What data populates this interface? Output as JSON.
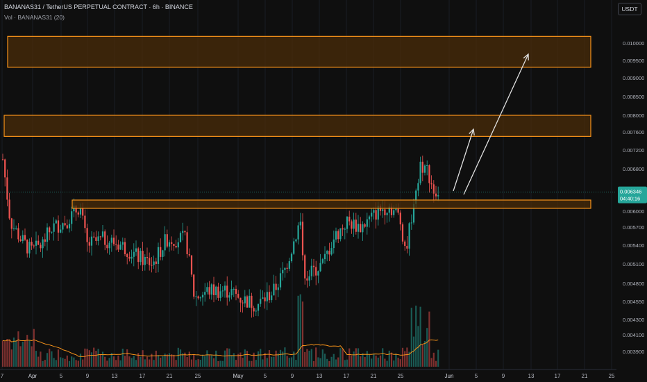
{
  "header": {
    "symbol_line": "BANANAS31 / TetherUS PERPETUAL CONTRACT · 6h · BINANCE",
    "volume_line": "Vol · BANANAS31 (20)"
  },
  "currency_button": "USDT",
  "price_label": {
    "price": "0.006346",
    "countdown": "04:40:16"
  },
  "colors": {
    "up": "#26a69a",
    "down": "#ef5350",
    "zone_fill": "#4a2c0a",
    "zone_stroke": "#f7931a",
    "arrow": "#e0e0e0",
    "price_tag": "#26a69a",
    "ma": "#f7931a"
  },
  "chart_data": {
    "type": "candlestick",
    "timeframe": "6h",
    "y_axis": {
      "ticks": [
        "0.010000",
        "0.009500",
        "0.009000",
        "0.008500",
        "0.008000",
        "0.007600",
        "0.007200",
        "0.006800",
        "0.006000",
        "0.005700",
        "0.005400",
        "0.005100",
        "0.004800",
        "0.004550",
        "0.004300",
        "0.004100",
        "0.003900"
      ],
      "scale": "log"
    },
    "x_axis": {
      "ticks": [
        "7",
        "Apr",
        "5",
        "9",
        "13",
        "17",
        "21",
        "25",
        "May",
        "5",
        "9",
        "13",
        "17",
        "21",
        "25",
        "Jun",
        "5",
        "9",
        "13",
        "17",
        "21",
        "25"
      ]
    },
    "current_price": 0.006346,
    "zones": [
      {
        "name": "target-zone-2",
        "low": 0.0093,
        "high": 0.0102
      },
      {
        "name": "target-zone-1",
        "low": 0.0075,
        "high": 0.008
      },
      {
        "name": "support-zone",
        "low": 0.00605,
        "high": 0.0062
      }
    ],
    "arrows": [
      {
        "from": [
          0.0064
        ],
        "to": [
          0.0078
        ]
      },
      {
        "from": [
          0.0064
        ],
        "to": [
          0.0097
        ]
      }
    ],
    "volume_ma_period": 20
  }
}
